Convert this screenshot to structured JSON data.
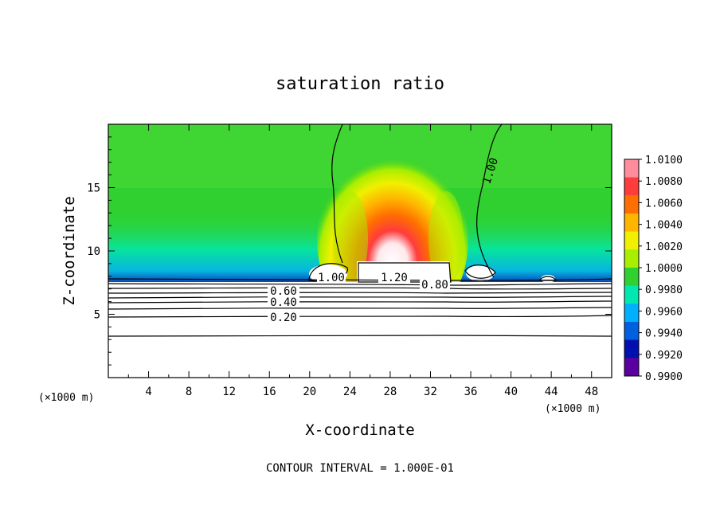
{
  "chart_data": {
    "type": "heatmap",
    "title": "saturation ratio",
    "xlabel": "X-coordinate",
    "ylabel": "Z-coordinate",
    "x_unit": "(×1000 m)",
    "x_unit_right": "(×1000 m)",
    "xlim": [
      0,
      50
    ],
    "ylim": [
      0,
      20
    ],
    "x_ticks": [
      4,
      8,
      12,
      16,
      20,
      24,
      28,
      32,
      36,
      40,
      44,
      48
    ],
    "x_tick_labels": [
      "4",
      "8",
      "12",
      "16",
      "20",
      "24",
      "28",
      "32",
      "36",
      "40",
      "44",
      "48"
    ],
    "y_ticks": [
      5,
      10,
      15
    ],
    "y_tick_labels": [
      "5",
      "10",
      "15"
    ],
    "colorbar": {
      "min": 0.99,
      "max": 1.01,
      "labels": [
        "1.0100",
        "1.0080",
        "1.0060",
        "1.0040",
        "1.0020",
        "1.0000",
        "0.9980",
        "0.9960",
        "0.9940",
        "0.9920",
        "0.9900"
      ],
      "colors": [
        "#ff8c9c",
        "#ff3c3c",
        "#ff6e00",
        "#ffb400",
        "#f0f000",
        "#a8ee00",
        "#2fd02f",
        "#00e8b0",
        "#00b0ff",
        "#0060e0",
        "#0010b0",
        "#5a00a0"
      ]
    },
    "contours": [
      {
        "label": "0.20",
        "z": 4.9
      },
      {
        "label": "0.40",
        "z": 5.8
      },
      {
        "label": "0.60",
        "z": 6.4
      },
      {
        "label": "0.80",
        "z": 7.3
      },
      {
        "label": "1.00",
        "z": 7.9
      },
      {
        "label": "1.20",
        "z": 8.0
      }
    ],
    "labels_on_plot": [
      "1.00",
      "1.20",
      "0.80",
      "0.60",
      "0.40",
      "0.20",
      "1.00"
    ],
    "annotation": "CONTOUR INTERVAL = 1.000E-01"
  }
}
